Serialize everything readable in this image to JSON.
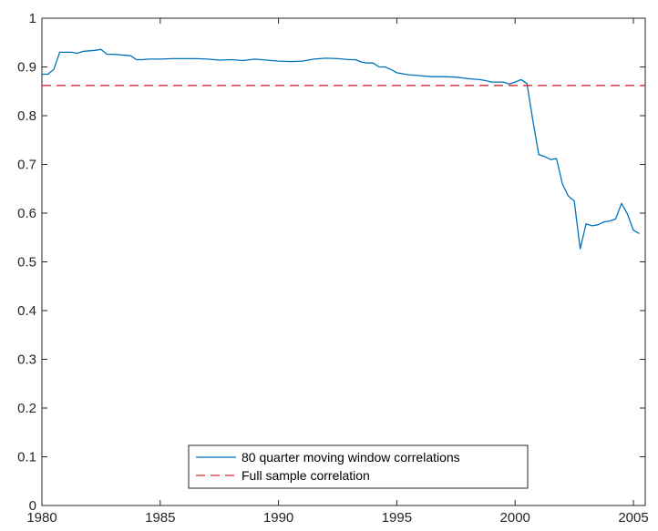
{
  "chart_data": {
    "type": "line",
    "title": "",
    "xlabel": "",
    "ylabel": "",
    "xlim": [
      1980,
      2005.5
    ],
    "ylim": [
      0,
      1
    ],
    "xticks": [
      1980,
      1985,
      1990,
      1995,
      2000,
      2005
    ],
    "yticks": [
      0,
      0.1,
      0.2,
      0.3,
      0.4,
      0.5,
      0.6,
      0.7,
      0.8,
      0.9,
      1
    ],
    "ytick_labels": [
      "0",
      "0.1",
      "0.2",
      "0.3",
      "0.4",
      "0.5",
      "0.6",
      "0.7",
      "0.8",
      "0.9",
      "1"
    ],
    "grid": false,
    "legend_position": "bottom-center",
    "series": [
      {
        "name": "80 quarter moving window correlations",
        "color": "#0072bd",
        "style": "solid",
        "x": [
          1980.0,
          1980.25,
          1980.5,
          1980.75,
          1981.0,
          1981.25,
          1981.5,
          1981.75,
          1982.0,
          1982.25,
          1982.5,
          1982.75,
          1983.0,
          1983.25,
          1983.5,
          1983.75,
          1984.0,
          1984.25,
          1984.5,
          1984.75,
          1985.0,
          1985.5,
          1986.0,
          1986.5,
          1987.0,
          1987.5,
          1988.0,
          1988.5,
          1989.0,
          1989.5,
          1990.0,
          1990.5,
          1991.0,
          1991.5,
          1992.0,
          1992.5,
          1993.0,
          1993.25,
          1993.5,
          1993.75,
          1994.0,
          1994.25,
          1994.5,
          1994.75,
          1995.0,
          1995.5,
          1996.0,
          1996.5,
          1997.0,
          1997.5,
          1998.0,
          1998.25,
          1998.5,
          1998.75,
          1999.0,
          1999.25,
          1999.5,
          1999.75,
          2000.0,
          2000.25,
          2000.5,
          2000.75,
          2001.0,
          2001.25,
          2001.5,
          2001.75,
          2002.0,
          2002.25,
          2002.5,
          2002.75,
          2003.0,
          2003.25,
          2003.5,
          2003.75,
          2004.0,
          2004.25,
          2004.5,
          2004.75,
          2005.0,
          2005.25
        ],
        "values": [
          0.885,
          0.885,
          0.895,
          0.93,
          0.93,
          0.93,
          0.928,
          0.932,
          0.933,
          0.934,
          0.936,
          0.926,
          0.926,
          0.925,
          0.924,
          0.923,
          0.915,
          0.915,
          0.916,
          0.916,
          0.916,
          0.917,
          0.917,
          0.917,
          0.916,
          0.914,
          0.915,
          0.913,
          0.916,
          0.914,
          0.912,
          0.911,
          0.912,
          0.916,
          0.918,
          0.917,
          0.915,
          0.915,
          0.91,
          0.908,
          0.908,
          0.9,
          0.9,
          0.895,
          0.888,
          0.884,
          0.882,
          0.88,
          0.88,
          0.879,
          0.876,
          0.875,
          0.874,
          0.872,
          0.869,
          0.869,
          0.869,
          0.865,
          0.869,
          0.874,
          0.866,
          0.79,
          0.72,
          0.716,
          0.71,
          0.712,
          0.66,
          0.635,
          0.625,
          0.527,
          0.578,
          0.574,
          0.576,
          0.582,
          0.584,
          0.588,
          0.62,
          0.598,
          0.565,
          0.558
        ]
      },
      {
        "name": "Full sample correlation",
        "color": "#d62728",
        "style": "dashed",
        "x": [
          1980,
          2005.5
        ],
        "values": [
          0.862,
          0.862
        ]
      }
    ]
  }
}
